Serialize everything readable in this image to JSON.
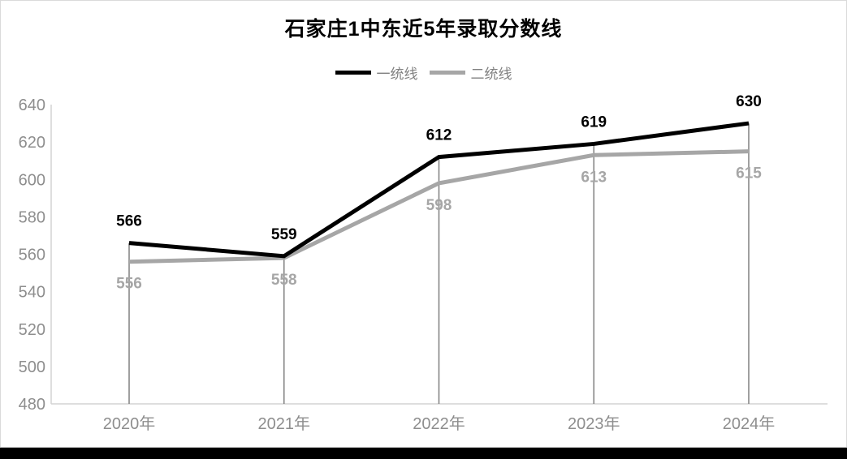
{
  "chart": {
    "title": "石家庄1中东近5年录取分数线"
  },
  "chart_data": {
    "type": "line",
    "title": "石家庄1中东近5年录取分数线",
    "categories": [
      "2020年",
      "2021年",
      "2022年",
      "2023年",
      "2024年"
    ],
    "series": [
      {
        "name": "一统线",
        "color": "#000000",
        "values": [
          566,
          559,
          612,
          619,
          630
        ]
      },
      {
        "name": "二统线",
        "color": "#a6a6a6",
        "values": [
          556,
          558,
          598,
          613,
          615
        ]
      }
    ],
    "ylim": [
      480,
      640
    ],
    "yticks": [
      480,
      500,
      520,
      540,
      560,
      580,
      600,
      620,
      640
    ],
    "grid": false,
    "legend_position": "top",
    "line_width": 5,
    "colors": {
      "axis_line": "#d4d4d4",
      "tick_label": "#8e8e8e",
      "drop_line": "#808080",
      "legend_text": "#808080",
      "series1_label": "#000000",
      "series2_label": "#a6a6a6"
    }
  }
}
